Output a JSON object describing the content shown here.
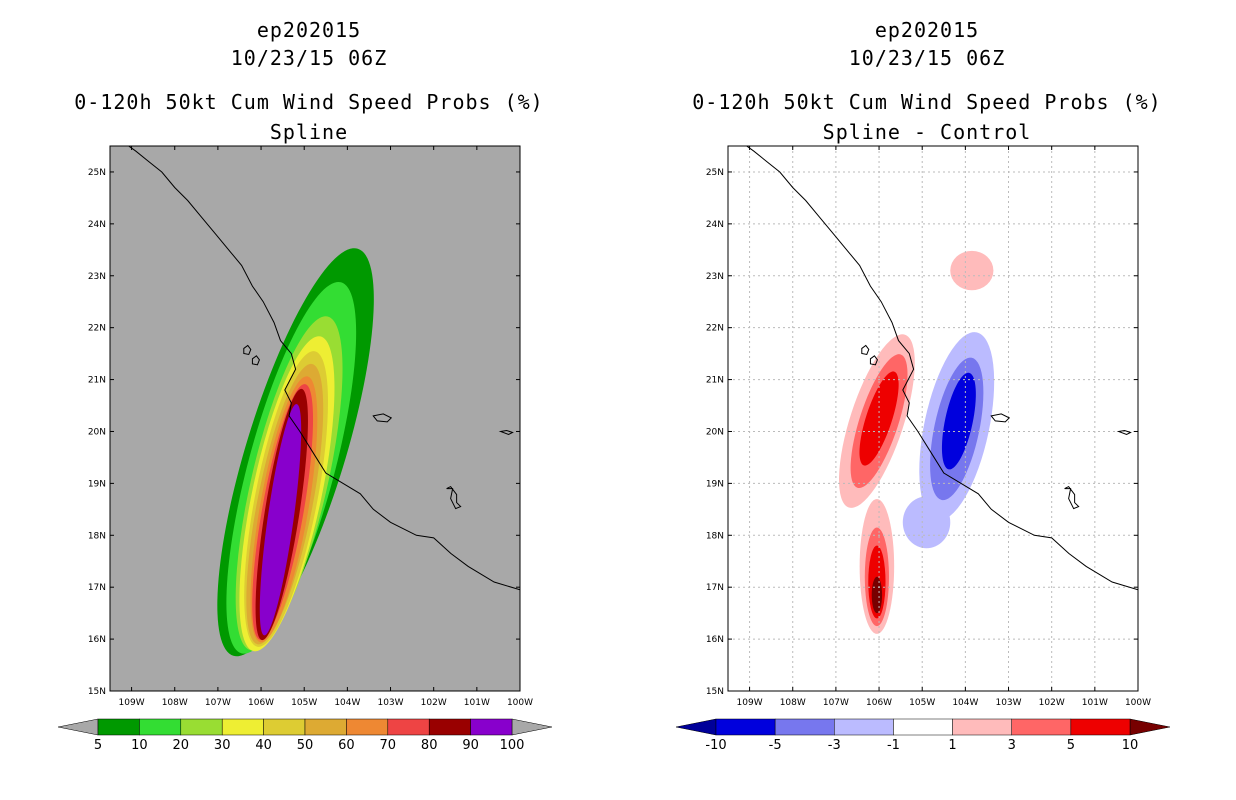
{
  "chart_data": [
    {
      "type": "heatmap",
      "storm_id": "ep202015",
      "datetime": "10/23/15 06Z",
      "title": "0-120h 50kt Cum Wind Speed Probs (%)",
      "subtitle": "Spline",
      "x_ticks": [
        "109W",
        "108W",
        "107W",
        "106W",
        "105W",
        "104W",
        "103W",
        "102W",
        "101W",
        "100W"
      ],
      "y_ticks": [
        "15N",
        "16N",
        "17N",
        "18N",
        "19N",
        "20N",
        "21N",
        "22N",
        "23N",
        "24N",
        "25N"
      ],
      "xlim": [
        -109.5,
        -100.0
      ],
      "ylim": [
        15.0,
        25.5
      ],
      "grid": false,
      "colorbar": {
        "labels": [
          "5",
          "10",
          "20",
          "30",
          "40",
          "50",
          "60",
          "70",
          "80",
          "90",
          "100"
        ],
        "colors": [
          "#009900",
          "#33dd33",
          "#99dd33",
          "#eeee33",
          "#ddcc33",
          "#ddaa33",
          "#ee8833",
          "#ee4444",
          "#990000",
          "#8800cc"
        ],
        "extend_color": "#a8a8a8"
      },
      "background_color": "#a8a8a8",
      "levels": [
        {
          "value": 5,
          "color": "#009900",
          "ellipse": {
            "cx": -105.2,
            "cy": 19.6,
            "rx": 1.15,
            "ry": 4.1,
            "rot": 17
          }
        },
        {
          "value": 10,
          "color": "#33dd33",
          "ellipse": {
            "cx": -105.3,
            "cy": 19.3,
            "rx": 1.0,
            "ry": 3.7,
            "rot": 15
          }
        },
        {
          "value": 20,
          "color": "#99dd33",
          "ellipse": {
            "cx": -105.35,
            "cy": 19.0,
            "rx": 0.88,
            "ry": 3.3,
            "rot": 13
          }
        },
        {
          "value": 30,
          "color": "#eeee33",
          "ellipse": {
            "cx": -105.4,
            "cy": 18.8,
            "rx": 0.8,
            "ry": 3.1,
            "rot": 12
          }
        },
        {
          "value": 40,
          "color": "#ddcc33",
          "ellipse": {
            "cx": -105.42,
            "cy": 18.7,
            "rx": 0.72,
            "ry": 2.9,
            "rot": 11
          }
        },
        {
          "value": 50,
          "color": "#ddaa33",
          "ellipse": {
            "cx": -105.45,
            "cy": 18.6,
            "rx": 0.64,
            "ry": 2.75,
            "rot": 11
          }
        },
        {
          "value": 60,
          "color": "#ee8833",
          "ellipse": {
            "cx": -105.47,
            "cy": 18.5,
            "rx": 0.56,
            "ry": 2.6,
            "rot": 10
          }
        },
        {
          "value": 70,
          "color": "#ee4444",
          "ellipse": {
            "cx": -105.5,
            "cy": 18.45,
            "rx": 0.48,
            "ry": 2.5,
            "rot": 10
          }
        },
        {
          "value": 80,
          "color": "#990000",
          "ellipse": {
            "cx": -105.52,
            "cy": 18.4,
            "rx": 0.4,
            "ry": 2.45,
            "rot": 9
          }
        },
        {
          "value": 90,
          "color": "#8800cc",
          "ellipse": {
            "cx": -105.55,
            "cy": 18.3,
            "rx": 0.3,
            "ry": 2.25,
            "rot": 8
          }
        }
      ]
    },
    {
      "type": "heatmap",
      "storm_id": "ep202015",
      "datetime": "10/23/15 06Z",
      "title": "0-120h 50kt Cum Wind Speed Probs (%)",
      "subtitle": "Spline - Control",
      "x_ticks": [
        "109W",
        "108W",
        "107W",
        "106W",
        "105W",
        "104W",
        "103W",
        "102W",
        "101W",
        "100W"
      ],
      "y_ticks": [
        "15N",
        "16N",
        "17N",
        "18N",
        "19N",
        "20N",
        "21N",
        "22N",
        "23N",
        "24N",
        "25N"
      ],
      "xlim": [
        -109.5,
        -100.0
      ],
      "ylim": [
        15.0,
        25.5
      ],
      "grid": true,
      "colorbar": {
        "labels": [
          "-10",
          "-5",
          "-3",
          "-1",
          "1",
          "3",
          "5",
          "10"
        ],
        "colors": [
          "#0000dd",
          "#7777ee",
          "#bbbbff",
          "#ffffff",
          "#ffbbbb",
          "#ff6666",
          "#ee0000"
        ],
        "extend_low_color": "#000099",
        "extend_high_color": "#770000"
      },
      "background_color": "#ffffff",
      "regions": [
        {
          "value": 1,
          "color": "#ffbbbb",
          "ellipse": {
            "cx": -106.05,
            "cy": 20.2,
            "rx": 0.62,
            "ry": 1.75,
            "rot": 18
          }
        },
        {
          "value": 1,
          "color": "#ffbbbb",
          "ellipse": {
            "cx": -106.05,
            "cy": 17.4,
            "rx": 0.4,
            "ry": 1.3,
            "rot": 0
          }
        },
        {
          "value": 1,
          "color": "#ffbbbb",
          "ellipse": {
            "cx": -103.85,
            "cy": 23.1,
            "rx": 0.5,
            "ry": 0.38,
            "rot": 0
          }
        },
        {
          "value": 3,
          "color": "#ff6666",
          "ellipse": {
            "cx": -106.0,
            "cy": 20.2,
            "rx": 0.45,
            "ry": 1.35,
            "rot": 18
          }
        },
        {
          "value": 3,
          "color": "#ff6666",
          "ellipse": {
            "cx": -106.05,
            "cy": 17.2,
            "rx": 0.28,
            "ry": 0.95,
            "rot": 0
          }
        },
        {
          "value": 5,
          "color": "#ee0000",
          "ellipse": {
            "cx": -106.0,
            "cy": 20.25,
            "rx": 0.3,
            "ry": 0.95,
            "rot": 18
          }
        },
        {
          "value": 5,
          "color": "#ee0000",
          "ellipse": {
            "cx": -106.05,
            "cy": 17.1,
            "rx": 0.2,
            "ry": 0.7,
            "rot": 0
          }
        },
        {
          "value": 10,
          "color": "#770000",
          "ellipse": {
            "cx": -106.05,
            "cy": 16.85,
            "rx": 0.12,
            "ry": 0.35,
            "rot": 0
          }
        },
        {
          "value": -1,
          "color": "#bbbbff",
          "ellipse": {
            "cx": -104.2,
            "cy": 20.1,
            "rx": 0.75,
            "ry": 1.85,
            "rot": 12
          }
        },
        {
          "value": -1,
          "color": "#bbbbff",
          "ellipse": {
            "cx": -104.9,
            "cy": 18.25,
            "rx": 0.55,
            "ry": 0.5,
            "rot": 0
          }
        },
        {
          "value": -3,
          "color": "#7777ee",
          "ellipse": {
            "cx": -104.2,
            "cy": 20.05,
            "rx": 0.52,
            "ry": 1.4,
            "rot": 12
          }
        },
        {
          "value": -5,
          "color": "#0000dd",
          "ellipse": {
            "cx": -104.15,
            "cy": 20.2,
            "rx": 0.32,
            "ry": 0.95,
            "rot": 12
          }
        }
      ]
    }
  ]
}
